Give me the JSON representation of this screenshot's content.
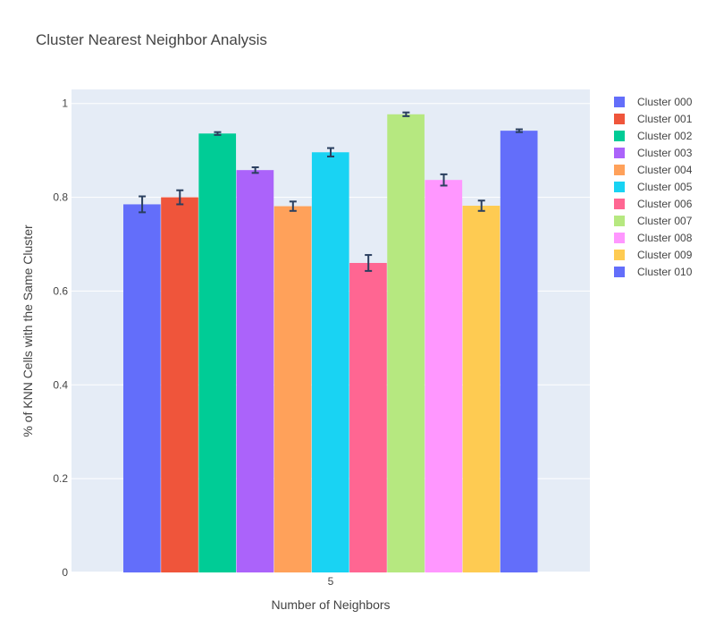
{
  "chart_data": {
    "type": "bar",
    "title": "Cluster Nearest Neighbor Analysis",
    "xlabel": "Number of Neighbors",
    "ylabel": "% of KNN Cells with the Same Cluster",
    "categories": [
      "5"
    ],
    "ylim": [
      0,
      1.03
    ],
    "yticks": [
      0,
      0.2,
      0.4,
      0.6,
      0.8,
      1
    ],
    "ytick_labels": [
      "0",
      "0.2",
      "0.4",
      "0.6",
      "0.8",
      "1"
    ],
    "grid": true,
    "legend_position": "right",
    "background": "#E5ECF6",
    "series": [
      {
        "name": "Cluster 000",
        "values": [
          0.785
        ],
        "error": [
          0.017
        ],
        "color": "#636EFA"
      },
      {
        "name": "Cluster 001",
        "values": [
          0.8
        ],
        "error": [
          0.015
        ],
        "color": "#EF553B"
      },
      {
        "name": "Cluster 002",
        "values": [
          0.936
        ],
        "error": [
          0.003
        ],
        "color": "#00CC96"
      },
      {
        "name": "Cluster 003",
        "values": [
          0.858
        ],
        "error": [
          0.006
        ],
        "color": "#AB63FA"
      },
      {
        "name": "Cluster 004",
        "values": [
          0.781
        ],
        "error": [
          0.01
        ],
        "color": "#FFA15A"
      },
      {
        "name": "Cluster 005",
        "values": [
          0.896
        ],
        "error": [
          0.009
        ],
        "color": "#19D3F3"
      },
      {
        "name": "Cluster 006",
        "values": [
          0.66
        ],
        "error": [
          0.017
        ],
        "color": "#FF6692"
      },
      {
        "name": "Cluster 007",
        "values": [
          0.977
        ],
        "error": [
          0.004
        ],
        "color": "#B6E880"
      },
      {
        "name": "Cluster 008",
        "values": [
          0.837
        ],
        "error": [
          0.012
        ],
        "color": "#FF97FF"
      },
      {
        "name": "Cluster 009",
        "values": [
          0.782
        ],
        "error": [
          0.011
        ],
        "color": "#FECB52"
      },
      {
        "name": "Cluster 010",
        "values": [
          0.942
        ],
        "error": [
          0.003
        ],
        "color": "#636EFA"
      }
    ]
  }
}
